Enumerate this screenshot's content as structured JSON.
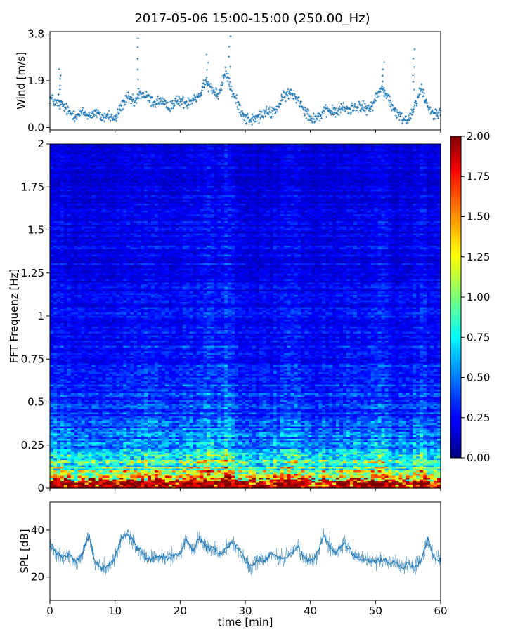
{
  "figure_title": "2017-05-06 15:00-15:00 (250.00_Hz)",
  "chart_data": [
    {
      "type": "scatter",
      "panel": "wind",
      "ylabel": "Wind [m/s]",
      "xlim": [
        0,
        60
      ],
      "ylim": [
        -0.1,
        3.9
      ],
      "yticks": [
        {
          "value": 0.0,
          "label": "0.0"
        },
        {
          "value": 1.9,
          "label": "1.9"
        },
        {
          "value": 3.8,
          "label": "3.8"
        }
      ],
      "xticks": [
        0,
        10,
        20,
        30,
        40,
        50,
        60
      ],
      "color": "#1f77b4",
      "marker": "+",
      "trend": [
        {
          "x": 0,
          "y": 1.2
        },
        {
          "x": 1,
          "y": 1.0
        },
        {
          "x": 2,
          "y": 0.9
        },
        {
          "x": 3,
          "y": 0.6
        },
        {
          "x": 4,
          "y": 0.5
        },
        {
          "x": 5,
          "y": 0.6
        },
        {
          "x": 6,
          "y": 0.5
        },
        {
          "x": 7,
          "y": 0.6
        },
        {
          "x": 8,
          "y": 0.4
        },
        {
          "x": 9,
          "y": 0.5
        },
        {
          "x": 10,
          "y": 0.3
        },
        {
          "x": 11,
          "y": 0.9
        },
        {
          "x": 12,
          "y": 1.2
        },
        {
          "x": 13,
          "y": 1.0
        },
        {
          "x": 14,
          "y": 1.4
        },
        {
          "x": 15,
          "y": 1.2
        },
        {
          "x": 16,
          "y": 1.0
        },
        {
          "x": 17,
          "y": 1.1
        },
        {
          "x": 18,
          "y": 0.8
        },
        {
          "x": 19,
          "y": 1.0
        },
        {
          "x": 20,
          "y": 1.1
        },
        {
          "x": 21,
          "y": 1.0
        },
        {
          "x": 22,
          "y": 1.2
        },
        {
          "x": 23,
          "y": 1.3
        },
        {
          "x": 24,
          "y": 2.0
        },
        {
          "x": 25,
          "y": 1.5
        },
        {
          "x": 26,
          "y": 1.3
        },
        {
          "x": 27,
          "y": 2.3
        },
        {
          "x": 28,
          "y": 1.4
        },
        {
          "x": 29,
          "y": 0.9
        },
        {
          "x": 30,
          "y": 0.4
        },
        {
          "x": 31,
          "y": 0.3
        },
        {
          "x": 32,
          "y": 0.4
        },
        {
          "x": 33,
          "y": 0.6
        },
        {
          "x": 34,
          "y": 0.6
        },
        {
          "x": 35,
          "y": 0.8
        },
        {
          "x": 36,
          "y": 1.3
        },
        {
          "x": 37,
          "y": 1.4
        },
        {
          "x": 38,
          "y": 1.2
        },
        {
          "x": 39,
          "y": 0.8
        },
        {
          "x": 40,
          "y": 0.4
        },
        {
          "x": 41,
          "y": 0.4
        },
        {
          "x": 42,
          "y": 0.6
        },
        {
          "x": 43,
          "y": 0.7
        },
        {
          "x": 44,
          "y": 0.6
        },
        {
          "x": 45,
          "y": 0.8
        },
        {
          "x": 46,
          "y": 0.7
        },
        {
          "x": 47,
          "y": 0.9
        },
        {
          "x": 48,
          "y": 0.8
        },
        {
          "x": 49,
          "y": 0.7
        },
        {
          "x": 50,
          "y": 1.2
        },
        {
          "x": 51,
          "y": 1.6
        },
        {
          "x": 52,
          "y": 1.2
        },
        {
          "x": 53,
          "y": 0.6
        },
        {
          "x": 54,
          "y": 0.4
        },
        {
          "x": 55,
          "y": 0.3
        },
        {
          "x": 56,
          "y": 0.9
        },
        {
          "x": 57,
          "y": 1.6
        },
        {
          "x": 58,
          "y": 0.9
        },
        {
          "x": 59,
          "y": 0.5
        },
        {
          "x": 60,
          "y": 0.8
        }
      ],
      "spread": 0.35,
      "peaks": [
        {
          "x": 13.6,
          "y": 3.7
        },
        {
          "x": 27.6,
          "y": 3.8
        },
        {
          "x": 24.2,
          "y": 3.0
        },
        {
          "x": 51.2,
          "y": 2.7
        },
        {
          "x": 55.9,
          "y": 3.2
        },
        {
          "x": 1.5,
          "y": 2.4
        }
      ]
    },
    {
      "type": "heatmap",
      "panel": "spectrogram",
      "ylabel": "FFT Frequenz [Hz]",
      "xlim": [
        0,
        60
      ],
      "ylim": [
        0,
        2
      ],
      "yticks": [
        {
          "value": 0,
          "label": "0"
        },
        {
          "value": 0.25,
          "label": "0.25"
        },
        {
          "value": 0.5,
          "label": "0.5"
        },
        {
          "value": 0.75,
          "label": "0.75"
        },
        {
          "value": 1,
          "label": "1"
        },
        {
          "value": 1.25,
          "label": "1.25"
        },
        {
          "value": 1.5,
          "label": "1.5"
        },
        {
          "value": 1.75,
          "label": "1.75"
        },
        {
          "value": 2,
          "label": "2"
        }
      ],
      "colormap": "jet",
      "clim": [
        0,
        2
      ],
      "colorbar_ticks": [
        {
          "value": 0,
          "label": "0.00"
        },
        {
          "value": 0.25,
          "label": "0.25"
        },
        {
          "value": 0.5,
          "label": "0.50"
        },
        {
          "value": 0.75,
          "label": "0.75"
        },
        {
          "value": 1.0,
          "label": "1.00"
        },
        {
          "value": 1.25,
          "label": "1.25"
        },
        {
          "value": 1.5,
          "label": "1.50"
        },
        {
          "value": 1.75,
          "label": "1.75"
        },
        {
          "value": 2.0,
          "label": "2.00"
        }
      ],
      "typical_level": [
        {
          "freq": 0.0,
          "value": 1.9
        },
        {
          "freq": 0.03,
          "value": 1.6
        },
        {
          "freq": 0.06,
          "value": 1.2
        },
        {
          "freq": 0.1,
          "value": 0.95
        },
        {
          "freq": 0.15,
          "value": 0.75
        },
        {
          "freq": 0.25,
          "value": 0.5
        },
        {
          "freq": 0.4,
          "value": 0.35
        },
        {
          "freq": 0.6,
          "value": 0.3
        },
        {
          "freq": 1.0,
          "value": 0.24
        },
        {
          "freq": 1.5,
          "value": 0.2
        },
        {
          "freq": 2.0,
          "value": 0.17
        }
      ]
    },
    {
      "type": "line",
      "panel": "spl",
      "ylabel": "SPL [dB]",
      "xlabel": "time [min]",
      "xlim": [
        0,
        60
      ],
      "ylim": [
        10,
        52
      ],
      "yticks": [
        {
          "value": 20,
          "label": "20"
        },
        {
          "value": 40,
          "label": "40"
        }
      ],
      "xticks": [
        {
          "value": 0,
          "label": "0"
        },
        {
          "value": 10,
          "label": "10"
        },
        {
          "value": 20,
          "label": "20"
        },
        {
          "value": 30,
          "label": "30"
        },
        {
          "value": 40,
          "label": "40"
        },
        {
          "value": 50,
          "label": "50"
        },
        {
          "value": 60,
          "label": "60"
        }
      ],
      "color": "#1f77b4",
      "trend": [
        {
          "x": 0,
          "y": 34
        },
        {
          "x": 1,
          "y": 30
        },
        {
          "x": 2,
          "y": 28
        },
        {
          "x": 3,
          "y": 30
        },
        {
          "x": 4,
          "y": 26
        },
        {
          "x": 5,
          "y": 30
        },
        {
          "x": 6,
          "y": 38
        },
        {
          "x": 7,
          "y": 26
        },
        {
          "x": 8,
          "y": 24
        },
        {
          "x": 9,
          "y": 25
        },
        {
          "x": 10,
          "y": 28
        },
        {
          "x": 11,
          "y": 37
        },
        {
          "x": 12,
          "y": 38
        },
        {
          "x": 13,
          "y": 34
        },
        {
          "x": 14,
          "y": 31
        },
        {
          "x": 15,
          "y": 28
        },
        {
          "x": 16,
          "y": 28
        },
        {
          "x": 17,
          "y": 29
        },
        {
          "x": 18,
          "y": 28
        },
        {
          "x": 19,
          "y": 29
        },
        {
          "x": 20,
          "y": 30
        },
        {
          "x": 21,
          "y": 36
        },
        {
          "x": 22,
          "y": 31
        },
        {
          "x": 23,
          "y": 37
        },
        {
          "x": 24,
          "y": 33
        },
        {
          "x": 25,
          "y": 32
        },
        {
          "x": 26,
          "y": 30
        },
        {
          "x": 27,
          "y": 32
        },
        {
          "x": 28,
          "y": 35
        },
        {
          "x": 29,
          "y": 32
        },
        {
          "x": 30,
          "y": 27
        },
        {
          "x": 31,
          "y": 24
        },
        {
          "x": 32,
          "y": 28
        },
        {
          "x": 33,
          "y": 27
        },
        {
          "x": 34,
          "y": 30
        },
        {
          "x": 35,
          "y": 28
        },
        {
          "x": 36,
          "y": 28
        },
        {
          "x": 37,
          "y": 30
        },
        {
          "x": 38,
          "y": 33
        },
        {
          "x": 39,
          "y": 28
        },
        {
          "x": 40,
          "y": 27
        },
        {
          "x": 41,
          "y": 29
        },
        {
          "x": 42,
          "y": 38
        },
        {
          "x": 43,
          "y": 33
        },
        {
          "x": 44,
          "y": 30
        },
        {
          "x": 45,
          "y": 35
        },
        {
          "x": 46,
          "y": 32
        },
        {
          "x": 47,
          "y": 28
        },
        {
          "x": 48,
          "y": 27
        },
        {
          "x": 49,
          "y": 27
        },
        {
          "x": 50,
          "y": 27
        },
        {
          "x": 51,
          "y": 27
        },
        {
          "x": 52,
          "y": 26
        },
        {
          "x": 53,
          "y": 26
        },
        {
          "x": 54,
          "y": 24
        },
        {
          "x": 55,
          "y": 26
        },
        {
          "x": 56,
          "y": 24
        },
        {
          "x": 57,
          "y": 27
        },
        {
          "x": 58,
          "y": 36
        },
        {
          "x": 59,
          "y": 28
        },
        {
          "x": 60,
          "y": 27
        }
      ],
      "spread": 5
    }
  ]
}
